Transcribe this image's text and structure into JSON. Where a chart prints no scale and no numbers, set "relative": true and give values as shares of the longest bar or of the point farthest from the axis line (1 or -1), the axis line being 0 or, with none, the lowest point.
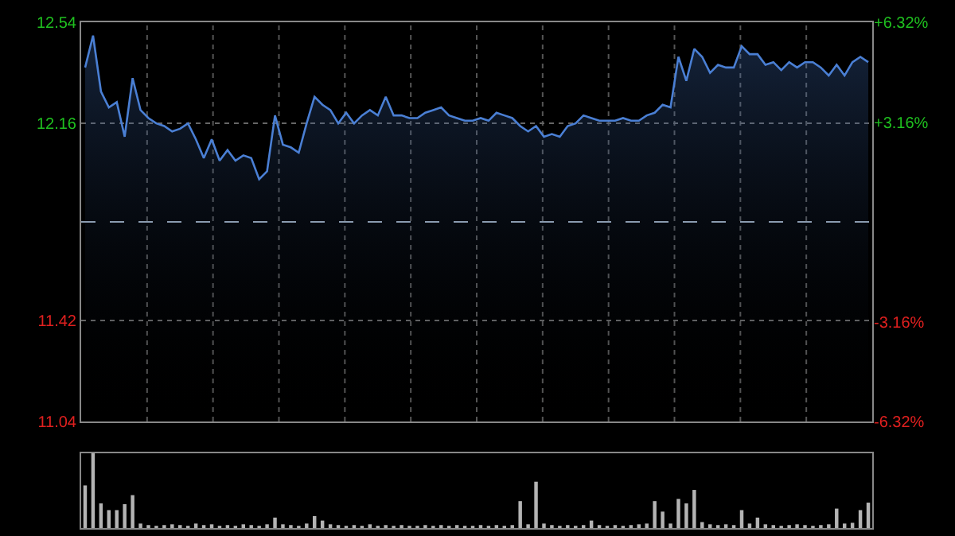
{
  "chart_data": [
    {
      "type": "area",
      "categories": [
        null,
        null,
        null,
        null,
        null,
        null,
        null,
        null,
        null,
        null,
        null,
        null,
        null,
        null,
        null,
        null,
        null,
        null,
        null,
        null,
        null,
        null,
        null,
        null,
        null,
        null,
        null,
        null,
        null,
        null,
        null,
        null,
        null,
        null,
        null,
        null,
        null,
        null,
        null,
        null,
        null,
        null,
        null,
        null,
        null,
        null,
        null,
        null,
        null,
        null,
        null,
        null,
        null,
        null,
        null,
        null,
        null,
        null,
        null,
        null,
        null,
        null,
        null,
        null,
        null,
        null,
        null,
        null,
        null,
        null,
        null,
        null,
        null,
        null,
        null,
        null,
        null,
        null,
        null,
        null,
        null,
        null,
        null,
        null,
        null,
        null,
        null,
        null,
        null,
        null,
        null,
        null,
        null,
        null,
        null,
        null,
        null,
        null,
        null,
        null
      ],
      "series": [
        {
          "color": "#4a7fd4",
          "values": [
            12.37,
            12.49,
            12.28,
            12.22,
            12.24,
            12.11,
            12.33,
            12.21,
            12.18,
            12.16,
            12.15,
            12.13,
            12.14,
            12.16,
            12.1,
            12.03,
            12.1,
            12.02,
            12.06,
            12.02,
            12.04,
            12.03,
            11.95,
            11.98,
            12.19,
            12.08,
            12.07,
            12.05,
            12.16,
            12.26,
            12.23,
            12.21,
            12.16,
            12.2,
            12.16,
            12.19,
            12.21,
            12.19,
            12.26,
            12.19,
            12.19,
            12.18,
            12.18,
            12.2,
            12.21,
            12.22,
            12.19,
            12.18,
            12.17,
            12.17,
            12.18,
            12.17,
            12.2,
            12.19,
            12.18,
            12.15,
            12.13,
            12.15,
            12.11,
            12.12,
            12.11,
            12.15,
            12.16,
            12.19,
            12.18,
            12.17,
            12.17,
            12.17,
            12.18,
            12.17,
            12.17,
            12.19,
            12.2,
            12.23,
            12.22,
            12.41,
            12.32,
            12.44,
            12.41,
            12.35,
            12.38,
            12.37,
            12.37,
            12.45,
            12.42,
            12.42,
            12.38,
            12.39,
            12.36,
            12.39,
            12.37,
            12.39,
            12.39,
            12.37,
            12.34,
            12.38,
            12.34,
            12.39,
            12.41,
            12.39
          ]
        }
      ],
      "ylim": [
        11.04,
        12.54
      ],
      "yticks": [
        11.04,
        11.42,
        12.16,
        12.54
      ],
      "y2lim": [
        -6.32,
        6.32
      ],
      "y2ticks": [
        {
          "value": -6.32,
          "label": "-6.32%"
        },
        {
          "value": -3.16,
          "label": "-3.16%"
        },
        {
          "value": 3.16,
          "label": "+3.16%"
        },
        {
          "value": 6.32,
          "label": "+6.32%"
        }
      ],
      "ref_lines": [
        {
          "axis": "y",
          "value": 11.79,
          "line_style": "dashed",
          "color": "#8a9bb0"
        }
      ],
      "grid": true,
      "tick_labels": "y",
      "marker": "none",
      "line_style": "solid"
    },
    {
      "type": "bar",
      "relative": true,
      "categories": [
        null,
        null,
        null,
        null,
        null,
        null,
        null,
        null,
        null,
        null,
        null,
        null,
        null,
        null,
        null,
        null,
        null,
        null,
        null,
        null,
        null,
        null,
        null,
        null,
        null,
        null,
        null,
        null,
        null,
        null,
        null,
        null,
        null,
        null,
        null,
        null,
        null,
        null,
        null,
        null,
        null,
        null,
        null,
        null,
        null,
        null,
        null,
        null,
        null,
        null,
        null,
        null,
        null,
        null,
        null,
        null,
        null,
        null,
        null,
        null,
        null,
        null,
        null,
        null,
        null,
        null,
        null,
        null,
        null,
        null,
        null,
        null,
        null,
        null,
        null,
        null,
        null,
        null,
        null,
        null,
        null,
        null,
        null,
        null,
        null,
        null,
        null,
        null,
        null,
        null,
        null,
        null,
        null,
        null,
        null,
        null,
        null,
        null,
        null,
        null
      ],
      "series": [
        {
          "color": "#b4b4b4",
          "values": [
            0.57,
            1,
            0.33,
            0.24,
            0.24,
            0.32,
            0.44,
            0.06,
            0.04,
            0.03,
            0.04,
            0.05,
            0.04,
            0.03,
            0.06,
            0.04,
            0.05,
            0.03,
            0.04,
            0.03,
            0.05,
            0.04,
            0.03,
            0.05,
            0.14,
            0.05,
            0.04,
            0.03,
            0.06,
            0.16,
            0.1,
            0.05,
            0.04,
            0.03,
            0.04,
            0.03,
            0.05,
            0.03,
            0.04,
            0.03,
            0.04,
            0.03,
            0.03,
            0.04,
            0.03,
            0.04,
            0.03,
            0.04,
            0.03,
            0.03,
            0.04,
            0.03,
            0.04,
            0.03,
            0.04,
            0.36,
            0.05,
            0.62,
            0.06,
            0.04,
            0.03,
            0.04,
            0.03,
            0.04,
            0.1,
            0.04,
            0.03,
            0.04,
            0.03,
            0.04,
            0.05,
            0.06,
            0.36,
            0.22,
            0.06,
            0.39,
            0.33,
            0.51,
            0.08,
            0.05,
            0.04,
            0.05,
            0.04,
            0.24,
            0.06,
            0.14,
            0.05,
            0.04,
            0.03,
            0.04,
            0.05,
            0.04,
            0.03,
            0.04,
            0.05,
            0.26,
            0.06,
            0.07,
            0.24,
            0.34
          ]
        }
      ],
      "grid": false,
      "tick_labels": false
    }
  ]
}
